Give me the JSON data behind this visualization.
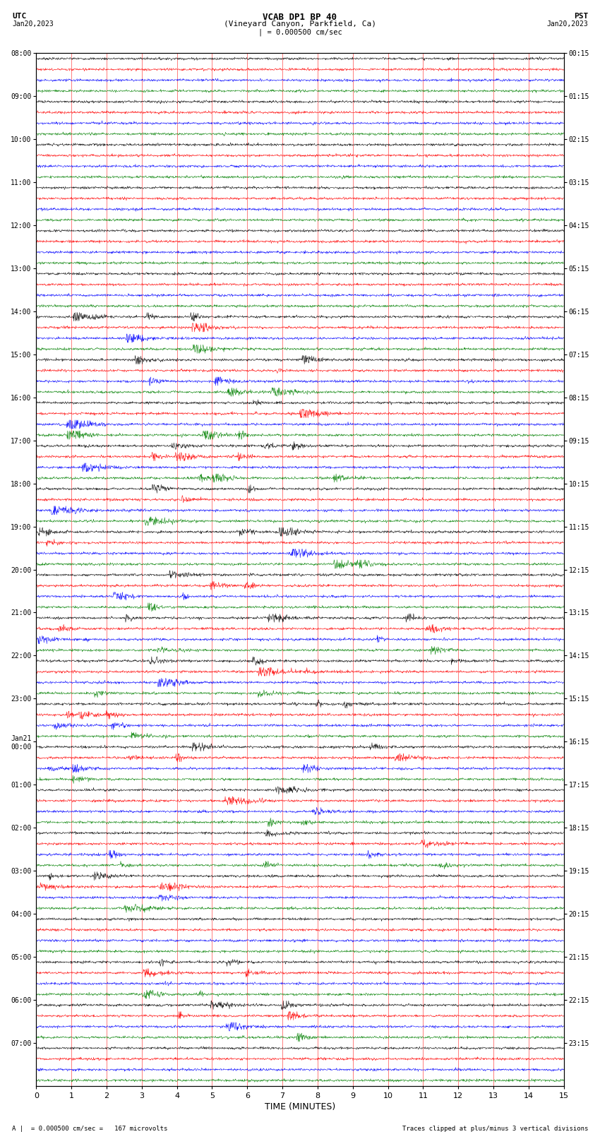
{
  "title_line1": "VCAB DP1 BP 40",
  "title_line2": "(Vineyard Canyon, Parkfield, Ca)",
  "scale_label": "| = 0.000500 cm/sec",
  "footer_left": "A |  = 0.000500 cm/sec =   167 microvolts",
  "footer_right": "Traces clipped at plus/minus 3 vertical divisions",
  "utc_times": [
    "08:00",
    "09:00",
    "10:00",
    "11:00",
    "12:00",
    "13:00",
    "14:00",
    "15:00",
    "16:00",
    "17:00",
    "18:00",
    "19:00",
    "20:00",
    "21:00",
    "22:00",
    "23:00",
    "Jan21\n00:00",
    "01:00",
    "02:00",
    "03:00",
    "04:00",
    "05:00",
    "06:00",
    "07:00"
  ],
  "pst_times": [
    "00:15",
    "01:15",
    "02:15",
    "03:15",
    "04:15",
    "05:15",
    "06:15",
    "07:15",
    "08:15",
    "09:15",
    "10:15",
    "11:15",
    "12:15",
    "13:15",
    "14:15",
    "15:15",
    "16:15",
    "17:15",
    "18:15",
    "19:15",
    "20:15",
    "21:15",
    "22:15",
    "23:15"
  ],
  "colors": [
    "black",
    "red",
    "blue",
    "green"
  ],
  "num_groups": 24,
  "traces_per_group": 4,
  "xlim": [
    0,
    15
  ],
  "xticks": [
    0,
    1,
    2,
    3,
    4,
    5,
    6,
    7,
    8,
    9,
    10,
    11,
    12,
    13,
    14,
    15
  ],
  "background": "white",
  "fig_width": 8.5,
  "fig_height": 16.13,
  "dpi": 100
}
